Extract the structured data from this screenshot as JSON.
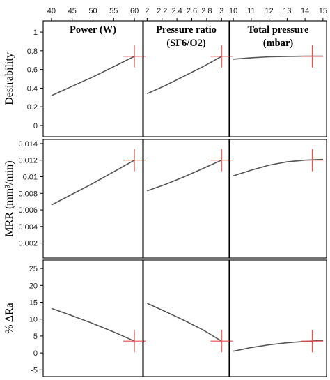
{
  "chart_data": {
    "type": "line",
    "layout": "3x3 prediction profiler grid",
    "columns": [
      {
        "title_line1": "Power (W)",
        "title_line2": "",
        "title_html": "Power (W)",
        "xlim": [
          38,
          62
        ],
        "ticks": [
          40,
          45,
          50,
          55,
          60
        ],
        "tick_labels": [
          "40",
          "45",
          "50",
          "55",
          "60"
        ],
        "current_value": 60
      },
      {
        "title_line1": "Pressure ratio",
        "title_line2": "(SF6/O2)",
        "xlim": [
          1.95,
          3.1
        ],
        "ticks": [
          2,
          2.2,
          2.4,
          2.6,
          2.8,
          3
        ],
        "tick_labels": [
          "2",
          "2.2",
          "2.4",
          "2.6",
          "2.8",
          "3"
        ],
        "current_value": 3
      },
      {
        "title_line1": "Total pressure",
        "title_line2": "(mbar)",
        "xlim": [
          9.8,
          15.2
        ],
        "ticks": [
          10,
          11,
          12,
          13,
          14,
          15
        ],
        "tick_labels": [
          "10",
          "11",
          "12",
          "13",
          "14",
          "15"
        ],
        "current_value": 14.4
      }
    ],
    "rows": [
      {
        "ylabel": "Desirability",
        "ylim": [
          -0.12,
          1.12
        ],
        "yticks": [
          0,
          0.2,
          0.4,
          0.6,
          0.8,
          1
        ],
        "ytick_labels": [
          "0",
          "0.2",
          "0.4",
          "0.6",
          "0.8",
          "1"
        ],
        "current_value": 0.74,
        "series": [
          {
            "x": [
              40,
              45,
              50,
              55,
              60
            ],
            "y": [
              0.32,
              0.42,
              0.52,
              0.63,
              0.74
            ]
          },
          {
            "x": [
              2,
              2.25,
              2.5,
              2.75,
              3
            ],
            "y": [
              0.34,
              0.43,
              0.53,
              0.63,
              0.74
            ]
          },
          {
            "x": [
              10,
              11,
              12,
              13,
              14,
              15
            ],
            "y": [
              0.71,
              0.725,
              0.735,
              0.74,
              0.742,
              0.742
            ]
          }
        ]
      },
      {
        "ylabel": "MRR (mm³/min)",
        "ylim": [
          0.0002,
          0.0145
        ],
        "yticks": [
          0.002,
          0.004,
          0.006,
          0.008,
          0.01,
          0.012,
          0.014
        ],
        "ytick_labels": [
          "0.002",
          "0.004",
          "0.006",
          "0.008",
          "0.01",
          "0.012",
          "0.014"
        ],
        "current_value": 0.012,
        "series": [
          {
            "x": [
              40,
              45,
              50,
              55,
              60
            ],
            "y": [
              0.0066,
              0.0079,
              0.0092,
              0.0106,
              0.012
            ]
          },
          {
            "x": [
              2,
              2.25,
              2.5,
              2.75,
              3
            ],
            "y": [
              0.0083,
              0.0091,
              0.01,
              0.011,
              0.012
            ]
          },
          {
            "x": [
              10,
              11,
              12,
              13,
              14,
              15
            ],
            "y": [
              0.0101,
              0.0108,
              0.0114,
              0.0118,
              0.012,
              0.0121
            ]
          }
        ]
      },
      {
        "ylabel": "% ΔRa",
        "ylim": [
          -7,
          27.5
        ],
        "yticks": [
          -5,
          0,
          5,
          10,
          15,
          20,
          25
        ],
        "ytick_labels": [
          "-5",
          "0",
          "5",
          "10",
          "15",
          "20",
          "25"
        ],
        "current_value": 3.5,
        "series": [
          {
            "x": [
              40,
              45,
              50,
              55,
              60
            ],
            "y": [
              13.2,
              11.0,
              8.7,
              6.2,
              3.5
            ]
          },
          {
            "x": [
              2,
              2.25,
              2.5,
              2.75,
              3
            ],
            "y": [
              14.7,
              12.2,
              9.6,
              6.8,
              3.5
            ]
          },
          {
            "x": [
              10,
              11,
              12,
              13,
              14,
              15
            ],
            "y": [
              0.5,
              1.6,
              2.4,
              3.0,
              3.4,
              3.7
            ]
          }
        ]
      }
    ],
    "curve_color": "#555555",
    "crosshair_color": "#ef4b4b",
    "grid": false
  }
}
